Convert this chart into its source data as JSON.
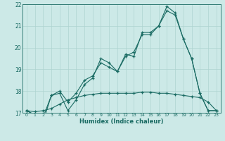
{
  "xlabel": "Humidex (Indice chaleur)",
  "xlim": [
    -0.5,
    23.5
  ],
  "ylim": [
    17,
    22
  ],
  "xticks": [
    0,
    1,
    2,
    3,
    4,
    5,
    6,
    7,
    8,
    9,
    10,
    11,
    12,
    13,
    14,
    15,
    16,
    17,
    18,
    19,
    20,
    21,
    22,
    23
  ],
  "yticks": [
    17,
    18,
    19,
    20,
    21,
    22
  ],
  "bg_color": "#cce9e7",
  "line_color": "#1a6b63",
  "grid_color": "#aed4d1",
  "line1_y": [
    17.1,
    16.9,
    16.6,
    17.8,
    17.9,
    17.1,
    17.6,
    18.3,
    18.6,
    19.5,
    19.3,
    18.9,
    19.7,
    19.6,
    20.7,
    20.7,
    21.0,
    21.9,
    21.6,
    20.4,
    19.5,
    17.9,
    17.1,
    17.1
  ],
  "line2_y": [
    17.1,
    16.9,
    16.8,
    17.8,
    18.0,
    17.5,
    17.9,
    18.5,
    18.7,
    19.3,
    19.1,
    18.9,
    19.6,
    19.8,
    20.6,
    20.6,
    21.0,
    21.7,
    21.5,
    20.4,
    19.5,
    17.9,
    17.1,
    17.1
  ],
  "line3_y": [
    17.1,
    17.05,
    17.1,
    17.2,
    17.4,
    17.6,
    17.7,
    17.8,
    17.85,
    17.9,
    17.9,
    17.9,
    17.9,
    17.9,
    17.95,
    17.95,
    17.9,
    17.9,
    17.85,
    17.8,
    17.75,
    17.7,
    17.5,
    17.1
  ]
}
